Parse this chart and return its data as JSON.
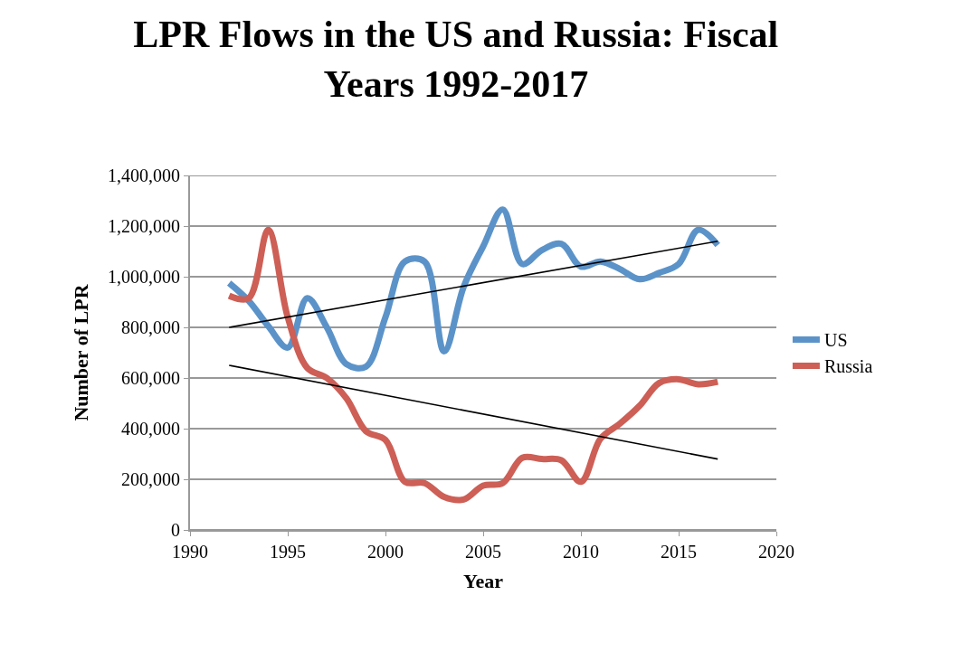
{
  "chart_data": {
    "type": "line",
    "title": "LPR Flows in the US and Russia: Fiscal Years 1992-2017",
    "xlabel": "Year",
    "ylabel": "Number of LPR",
    "x": [
      1992,
      1993,
      1994,
      1995,
      1996,
      1997,
      1998,
      1999,
      2000,
      2001,
      2002,
      2003,
      2004,
      2005,
      2006,
      2007,
      2008,
      2009,
      2010,
      2011,
      2012,
      2013,
      2014,
      2015,
      2016,
      2017
    ],
    "series": [
      {
        "name": "US",
        "color": "#5b93c9",
        "values": [
          975000,
          905000,
          805000,
          720000,
          915000,
          800000,
          655000,
          645000,
          840000,
          1060000,
          1060000,
          705000,
          960000,
          1120000,
          1265000,
          1050000,
          1105000,
          1130000,
          1040000,
          1060000,
          1030000,
          990000,
          1015000,
          1050000,
          1185000,
          1125000
        ]
      },
      {
        "name": "Russia",
        "color": "#cd5f56",
        "values": [
          925000,
          915000,
          1185000,
          840000,
          640000,
          600000,
          520000,
          390000,
          355000,
          190000,
          185000,
          130000,
          120000,
          175000,
          185000,
          285000,
          280000,
          275000,
          190000,
          360000,
          420000,
          490000,
          580000,
          595000,
          575000,
          585000
        ]
      },
      {
        "type": "line",
        "color": "#000000",
        "values": [
          800000,
          null,
          null,
          null,
          null,
          null,
          null,
          null,
          null,
          null,
          null,
          null,
          null,
          null,
          null,
          null,
          null,
          null,
          null,
          null,
          null,
          null,
          null,
          null,
          null,
          1140000
        ]
      },
      {
        "type": "line",
        "color": "#000000",
        "values": [
          650000,
          null,
          null,
          null,
          null,
          null,
          null,
          null,
          null,
          null,
          null,
          null,
          null,
          null,
          null,
          null,
          null,
          null,
          null,
          null,
          null,
          null,
          null,
          null,
          null,
          280000
        ]
      }
    ],
    "xlim": [
      1990,
      2020
    ],
    "xticks": [
      1990,
      1995,
      2000,
      2005,
      2010,
      2015,
      2020
    ],
    "ylim": [
      0,
      1400000
    ],
    "yticks": [
      {
        "value": 0,
        "label": "0"
      },
      {
        "value": 200000,
        "label": "200,000"
      },
      {
        "value": 400000,
        "label": "400,000"
      },
      {
        "value": 600000,
        "label": "600,000"
      },
      {
        "value": 800000,
        "label": "800,000"
      },
      {
        "value": 1000000,
        "label": "1,000,000"
      },
      {
        "value": 1200000,
        "label": "1,200,000"
      },
      {
        "value": 1400000,
        "label": "1,400,000"
      }
    ],
    "grid": "y",
    "legend": "right"
  }
}
